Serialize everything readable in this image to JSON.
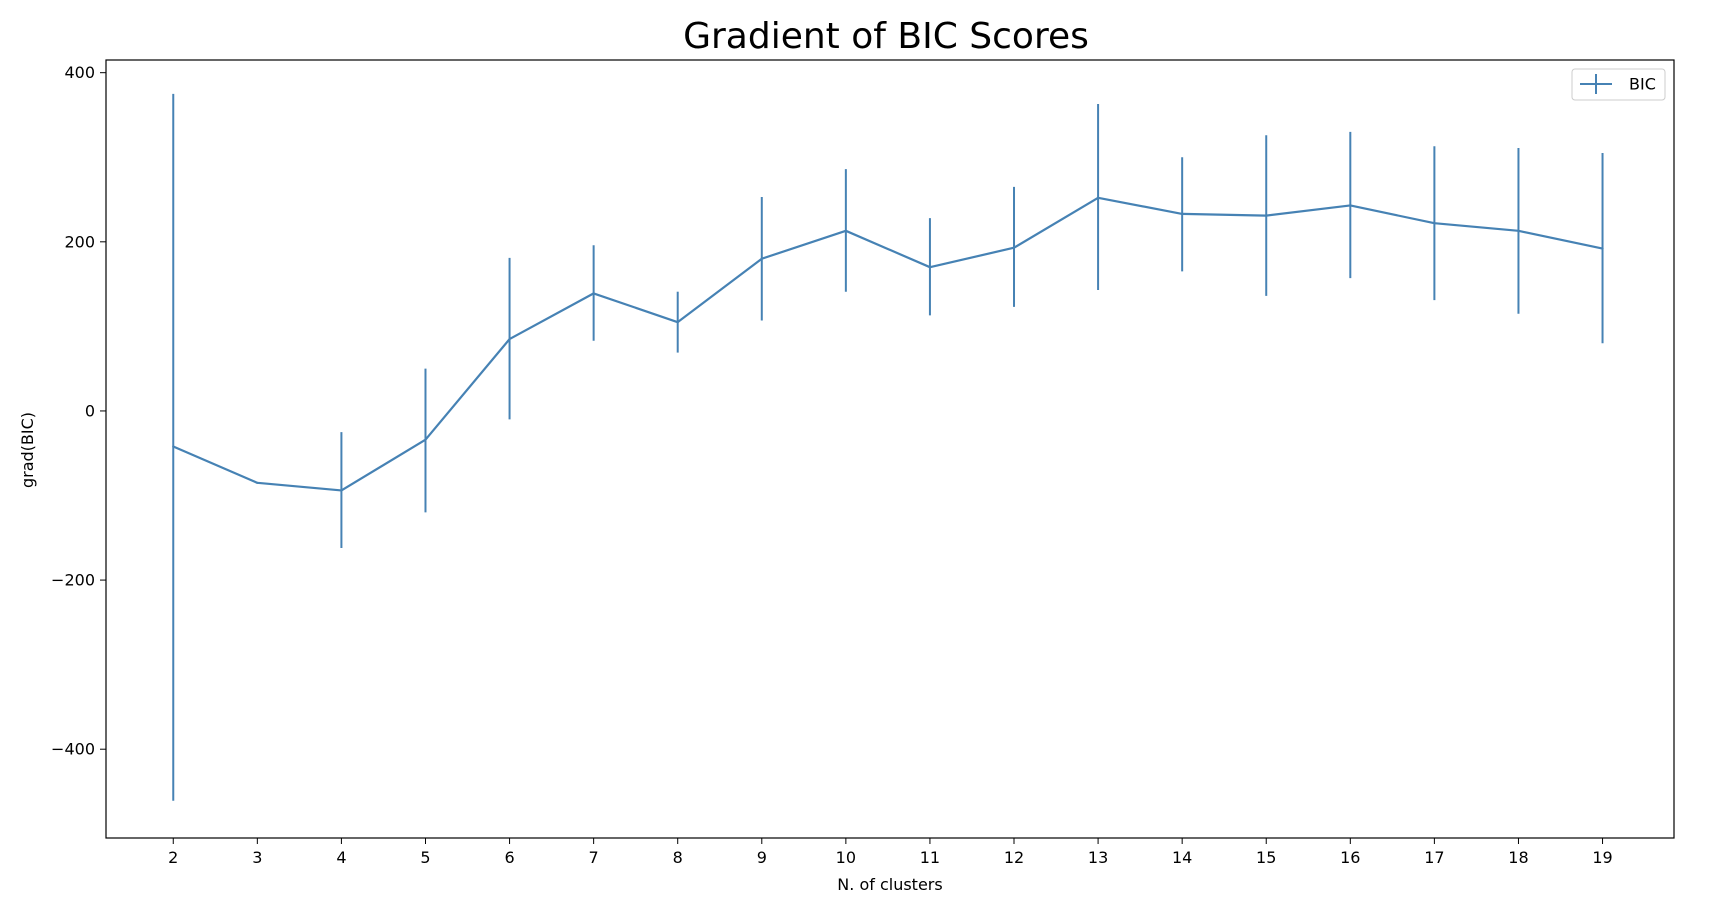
{
  "chart_data": {
    "type": "line",
    "title": "Gradient of BIC Scores",
    "xlabel": "N. of clusters",
    "ylabel": "grad(BIC)",
    "x": [
      2,
      3,
      4,
      5,
      6,
      7,
      8,
      9,
      10,
      11,
      12,
      13,
      14,
      15,
      16,
      17,
      18,
      19
    ],
    "xticks": [
      "2",
      "3",
      "4",
      "5",
      "6",
      "7",
      "8",
      "9",
      "10",
      "11",
      "12",
      "13",
      "14",
      "15",
      "16",
      "17",
      "18",
      "19"
    ],
    "yticks": [
      {
        "value": 400,
        "label": "400"
      },
      {
        "value": 200,
        "label": "200"
      },
      {
        "value": 0,
        "label": "0"
      },
      {
        "value": -200,
        "label": "−200"
      },
      {
        "value": -400,
        "label": "−400"
      }
    ],
    "xlim": [
      1.2,
      19.85
    ],
    "ylim": [
      -505,
      415
    ],
    "grid": false,
    "legend_position": "top-right",
    "series": [
      {
        "name": "BIC",
        "color": "#4682b4",
        "values": [
          -42,
          -85,
          -94,
          -34,
          85,
          139,
          105,
          180,
          213,
          170,
          193,
          252,
          233,
          231,
          243,
          222,
          213,
          192
        ],
        "error_low": [
          -461,
          -85,
          -162,
          -120,
          -10,
          83,
          69,
          107,
          141,
          113,
          123,
          143,
          165,
          136,
          157,
          131,
          115,
          80
        ],
        "error_high": [
          375,
          -85,
          -25,
          50,
          181,
          196,
          141,
          253,
          286,
          228,
          265,
          363,
          300,
          326,
          330,
          313,
          311,
          305
        ]
      }
    ]
  }
}
